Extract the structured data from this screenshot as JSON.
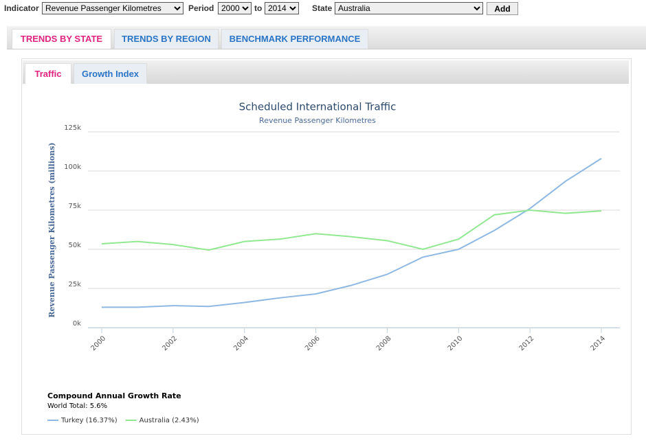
{
  "controls": {
    "indicator_label": "Indicator",
    "indicator": "Revenue Passenger Kilometres",
    "period_label": "Period",
    "period_from": "2000",
    "period_to_label": "to",
    "period_to": "2014",
    "state_label": "State",
    "state": "Australia",
    "add_button": "Add"
  },
  "tabs": [
    "TRENDS BY STATE",
    "TRENDS BY REGION",
    "BENCHMARK PERFORMANCE"
  ],
  "subtabs": [
    "Traffic",
    "Growth Index"
  ],
  "chart_data": {
    "type": "line",
    "title": "Scheduled International Traffic",
    "subtitle": "Revenue Passenger Kilometres",
    "y_label": "Revenue Passenger Kilometres (millions)",
    "x": [
      2000,
      2001,
      2002,
      2003,
      2004,
      2005,
      2006,
      2007,
      2008,
      2009,
      2010,
      2011,
      2012,
      2013,
      2014
    ],
    "xlim": [
      2000,
      2014
    ],
    "xticks": [
      2000,
      2002,
      2004,
      2006,
      2008,
      2010,
      2012,
      2014
    ],
    "ylim": [
      0,
      125000
    ],
    "yticks": [
      {
        "value": 0,
        "label": "0k"
      },
      {
        "value": 25000,
        "label": "25k"
      },
      {
        "value": 50000,
        "label": "50k"
      },
      {
        "value": 75000,
        "label": "75k"
      },
      {
        "value": 100000,
        "label": "100k"
      },
      {
        "value": 125000,
        "label": "125k"
      }
    ],
    "grid": true,
    "legend_title": "Compound Annual Growth Rate",
    "legend_subtitle": "World Total: 5.6%",
    "legend_position": "bottom-left",
    "series": [
      {
        "name": "Turkey (16.37%)",
        "color": "#8db8e3",
        "values": [
          13000,
          13000,
          14000,
          13500,
          16000,
          19000,
          21500,
          27000,
          34000,
          45000,
          50000,
          62000,
          76000,
          93500,
          108000
        ]
      },
      {
        "name": "Australia (2.43%)",
        "color": "#90e890",
        "values": [
          53500,
          55000,
          53000,
          49500,
          55000,
          56500,
          60000,
          58000,
          55500,
          50000,
          56500,
          72000,
          75000,
          73000,
          74500
        ]
      }
    ]
  }
}
